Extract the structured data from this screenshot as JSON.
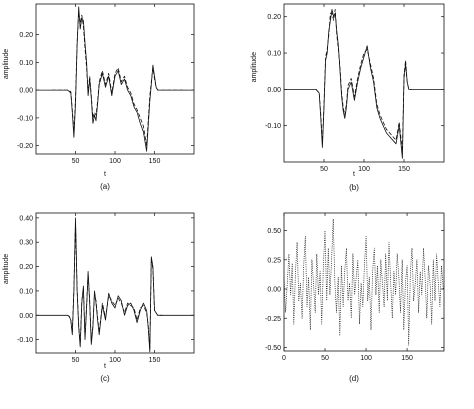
{
  "chart_data": [
    {
      "id": "a",
      "type": "line",
      "caption": "(a)",
      "xlabel": "t",
      "ylabel": "amplitude",
      "xlim": [
        0,
        200
      ],
      "ylim": [
        -0.23,
        0.31
      ],
      "xticks": [
        50,
        100,
        150
      ],
      "yticks": [
        -0.2,
        -0.1,
        0.0,
        0.1,
        0.2
      ],
      "ytick_labels": [
        "-0.20",
        "-0.10",
        "0.00",
        "0.10",
        "0.20"
      ],
      "grid": false,
      "series": [
        {
          "style": "solid",
          "x": [
            0,
            40,
            44,
            46,
            48,
            50,
            52,
            54,
            56,
            58,
            60,
            62,
            64,
            66,
            68,
            70,
            72,
            74,
            76,
            78,
            80,
            84,
            88,
            92,
            96,
            100,
            104,
            108,
            112,
            116,
            120,
            124,
            128,
            132,
            136,
            140,
            144,
            146,
            148,
            150,
            152,
            154,
            156,
            160,
            200
          ],
          "y": [
            0,
            0,
            -0.01,
            -0.08,
            -0.17,
            -0.05,
            0.16,
            0.3,
            0.22,
            0.26,
            0.25,
            0.17,
            0.1,
            -0.02,
            0.04,
            -0.03,
            -0.12,
            -0.09,
            -0.11,
            -0.05,
            0.02,
            0.06,
            0.01,
            0.05,
            -0.02,
            0.05,
            0.07,
            0.02,
            0.04,
            0.0,
            -0.02,
            -0.06,
            -0.08,
            -0.12,
            -0.15,
            -0.22,
            -0.04,
            0.02,
            0.09,
            0.05,
            0.01,
            0.0,
            0.0,
            0.0,
            0.0
          ]
        },
        {
          "style": "dashed",
          "x": [
            20,
            40,
            44,
            46,
            48,
            50,
            52,
            54,
            56,
            58,
            60,
            62,
            64,
            66,
            68,
            70,
            72,
            74,
            76,
            78,
            80,
            84,
            88,
            92,
            96,
            100,
            104,
            108,
            112,
            116,
            120,
            124,
            128,
            132,
            136,
            140,
            144,
            146,
            148,
            150,
            152,
            154,
            156,
            160,
            190
          ],
          "y": [
            0,
            0,
            -0.005,
            -0.07,
            -0.15,
            -0.03,
            0.17,
            0.28,
            0.24,
            0.27,
            0.23,
            0.15,
            0.08,
            -0.01,
            0.05,
            -0.02,
            -0.1,
            -0.08,
            -0.09,
            -0.04,
            0.03,
            0.07,
            0.02,
            0.06,
            -0.01,
            0.06,
            0.08,
            0.03,
            0.05,
            0.01,
            -0.01,
            -0.05,
            -0.07,
            -0.1,
            -0.13,
            -0.2,
            -0.02,
            0.03,
            0.08,
            0.04,
            0.01,
            0.0,
            0.0,
            0.0,
            0.0
          ]
        }
      ]
    },
    {
      "id": "b",
      "type": "line",
      "caption": "(b)",
      "xlabel": "t",
      "ylabel": "amplitude",
      "xlim": [
        0,
        200
      ],
      "ylim": [
        -0.2,
        0.235
      ],
      "xticks": [
        50,
        100,
        150
      ],
      "yticks": [
        -0.1,
        0.0,
        0.1,
        0.2
      ],
      "ytick_labels": [
        "-0.10",
        "0.00",
        "0.10",
        "0.20"
      ],
      "grid": false,
      "series": [
        {
          "style": "solid",
          "x": [
            0,
            40,
            44,
            46,
            48,
            50,
            52,
            54,
            56,
            58,
            60,
            62,
            64,
            66,
            68,
            70,
            72,
            74,
            76,
            78,
            80,
            84,
            88,
            92,
            96,
            100,
            104,
            108,
            112,
            116,
            120,
            124,
            128,
            132,
            136,
            140,
            144,
            148,
            150,
            152,
            154,
            156,
            160,
            200
          ],
          "y": [
            0,
            0,
            -0.01,
            -0.08,
            -0.16,
            -0.05,
            0.08,
            0.1,
            0.16,
            0.19,
            0.22,
            0.2,
            0.21,
            0.16,
            0.12,
            0.05,
            -0.02,
            -0.06,
            -0.08,
            -0.05,
            0.0,
            0.02,
            -0.03,
            0.02,
            0.06,
            0.09,
            0.12,
            0.06,
            0.02,
            -0.05,
            -0.08,
            -0.1,
            -0.12,
            -0.13,
            -0.14,
            -0.15,
            -0.1,
            -0.19,
            0.03,
            0.07,
            0.02,
            0.0,
            0.0,
            0.0
          ]
        },
        {
          "style": "dashed",
          "x": [
            40,
            44,
            46,
            48,
            50,
            52,
            54,
            56,
            58,
            60,
            62,
            64,
            66,
            68,
            70,
            72,
            74,
            76,
            78,
            80,
            84,
            88,
            92,
            96,
            100,
            104,
            108,
            112,
            116,
            120,
            124,
            128,
            132,
            136,
            140,
            144,
            148,
            150,
            152,
            154,
            156,
            160
          ],
          "y": [
            0,
            -0.01,
            -0.07,
            -0.15,
            -0.04,
            0.09,
            0.11,
            0.15,
            0.21,
            0.21,
            0.19,
            0.22,
            0.15,
            0.11,
            0.06,
            -0.01,
            -0.05,
            -0.07,
            -0.04,
            0.01,
            0.03,
            -0.02,
            0.03,
            0.07,
            0.1,
            0.11,
            0.07,
            0.03,
            -0.04,
            -0.07,
            -0.09,
            -0.11,
            -0.12,
            -0.13,
            -0.14,
            -0.09,
            -0.17,
            0.04,
            0.08,
            0.02,
            0.0,
            0.0
          ]
        }
      ]
    },
    {
      "id": "c",
      "type": "line",
      "caption": "(c)",
      "xlabel": "t",
      "ylabel": "amplitude",
      "xlim": [
        0,
        200
      ],
      "ylim": [
        -0.155,
        0.42
      ],
      "xticks": [
        50,
        100,
        150
      ],
      "yticks": [
        -0.1,
        0.0,
        0.1,
        0.2,
        0.3,
        0.4
      ],
      "ytick_labels": [
        "-0.10",
        "0.00",
        "0.10",
        "0.20",
        "0.30",
        "0.40"
      ],
      "grid": false,
      "series": [
        {
          "style": "solid",
          "x": [
            0,
            40,
            42,
            44,
            46,
            48,
            50,
            52,
            54,
            56,
            58,
            60,
            62,
            64,
            66,
            68,
            70,
            72,
            74,
            76,
            78,
            80,
            84,
            88,
            92,
            96,
            100,
            104,
            108,
            112,
            116,
            120,
            124,
            128,
            132,
            136,
            140,
            142,
            144,
            146,
            148,
            150,
            154,
            160,
            200
          ],
          "y": [
            0,
            0,
            -0.005,
            -0.02,
            -0.08,
            0.1,
            0.4,
            0.1,
            -0.05,
            -0.13,
            0.05,
            0.12,
            -0.1,
            0.03,
            0.18,
            0.05,
            -0.12,
            -0.05,
            0.1,
            0.05,
            -0.02,
            -0.08,
            0.04,
            -0.02,
            0.09,
            0.05,
            0.03,
            0.08,
            0.06,
            0.0,
            0.04,
            0.05,
            0.02,
            -0.03,
            0.02,
            0.05,
            0.02,
            -0.05,
            -0.15,
            0.24,
            0.2,
            0.02,
            0.0,
            0.0,
            0.0
          ]
        },
        {
          "style": "dashed",
          "x": [
            40,
            42,
            44,
            46,
            48,
            50,
            52,
            54,
            56,
            58,
            60,
            62,
            64,
            66,
            68,
            70,
            72,
            74,
            76,
            78,
            80,
            84,
            88,
            92,
            96,
            100,
            104,
            108,
            112,
            116,
            120,
            124,
            128,
            132,
            136,
            140,
            142,
            144,
            146,
            148,
            150,
            154,
            160
          ],
          "y": [
            0,
            -0.004,
            -0.02,
            -0.07,
            0.11,
            0.38,
            0.11,
            -0.04,
            -0.12,
            0.06,
            0.11,
            -0.09,
            0.04,
            0.17,
            0.06,
            -0.11,
            -0.04,
            0.09,
            0.06,
            -0.01,
            -0.07,
            0.05,
            -0.01,
            0.08,
            0.06,
            0.04,
            0.07,
            0.05,
            0.01,
            0.05,
            0.04,
            0.03,
            -0.02,
            0.03,
            0.04,
            0.01,
            -0.04,
            -0.14,
            0.23,
            0.19,
            0.02,
            0.0,
            0.0
          ]
        }
      ]
    },
    {
      "id": "d",
      "type": "line",
      "caption": "(d)",
      "xlabel": "",
      "ylabel": "",
      "xlim": [
        0,
        195
      ],
      "ylim": [
        -0.53,
        0.65
      ],
      "xticks": [
        0,
        50,
        100,
        150
      ],
      "yticks": [
        -0.5,
        -0.25,
        0.0,
        0.25,
        0.5
      ],
      "ytick_labels": [
        "-0.50",
        "-0.25",
        "0.00",
        "0.25",
        "0.50"
      ],
      "grid": false,
      "series": [
        {
          "style": "dotted",
          "x": [
            0,
            2,
            4,
            6,
            8,
            10,
            12,
            14,
            16,
            18,
            20,
            22,
            24,
            26,
            28,
            30,
            32,
            34,
            36,
            38,
            40,
            42,
            44,
            46,
            48,
            50,
            52,
            54,
            56,
            58,
            60,
            62,
            64,
            66,
            68,
            70,
            72,
            74,
            76,
            78,
            80,
            82,
            84,
            86,
            88,
            90,
            92,
            94,
            96,
            98,
            100,
            102,
            104,
            106,
            108,
            110,
            112,
            114,
            116,
            118,
            120,
            122,
            124,
            126,
            128,
            130,
            132,
            134,
            136,
            138,
            140,
            142,
            144,
            146,
            148,
            150,
            152,
            154,
            156,
            158,
            160,
            162,
            164,
            166,
            168,
            170,
            172,
            174,
            176,
            178,
            180,
            182,
            184,
            186,
            188,
            190,
            192,
            194
          ],
          "y": [
            0.1,
            -0.2,
            0.05,
            0.3,
            -0.05,
            0.22,
            -0.3,
            0.15,
            0.4,
            -0.1,
            0.05,
            -0.25,
            0.2,
            0.45,
            -0.15,
            0.1,
            -0.35,
            0.25,
            0.05,
            -0.2,
            0.3,
            -0.05,
            0.15,
            -0.3,
            0.2,
            0.5,
            -0.1,
            0.35,
            -0.05,
            0.25,
            0.6,
            0.05,
            -0.2,
            0.1,
            -0.4,
            0.2,
            -0.15,
            0.15,
            0.35,
            -0.1,
            0.05,
            -0.25,
            0.3,
            -0.05,
            0.1,
            0.25,
            -0.3,
            0.05,
            -0.15,
            0.2,
            0.45,
            -0.1,
            0.1,
            -0.35,
            0.15,
            0.35,
            -0.05,
            0.2,
            -0.2,
            0.25,
            0.05,
            -0.15,
            0.3,
            -0.1,
            0.4,
            0.05,
            -0.25,
            0.15,
            -0.05,
            0.3,
            0.1,
            -0.2,
            0.25,
            -0.35,
            0.05,
            0.2,
            -0.48,
            0.15,
            0.35,
            -0.1,
            0.05,
            0.25,
            -0.2,
            0.15,
            -0.05,
            0.35,
            0.1,
            -0.25,
            0.2,
            0.05,
            -0.3,
            0.25,
            -0.1,
            0.3,
            0.05,
            -0.15,
            0.2,
            0.0
          ]
        }
      ]
    }
  ]
}
